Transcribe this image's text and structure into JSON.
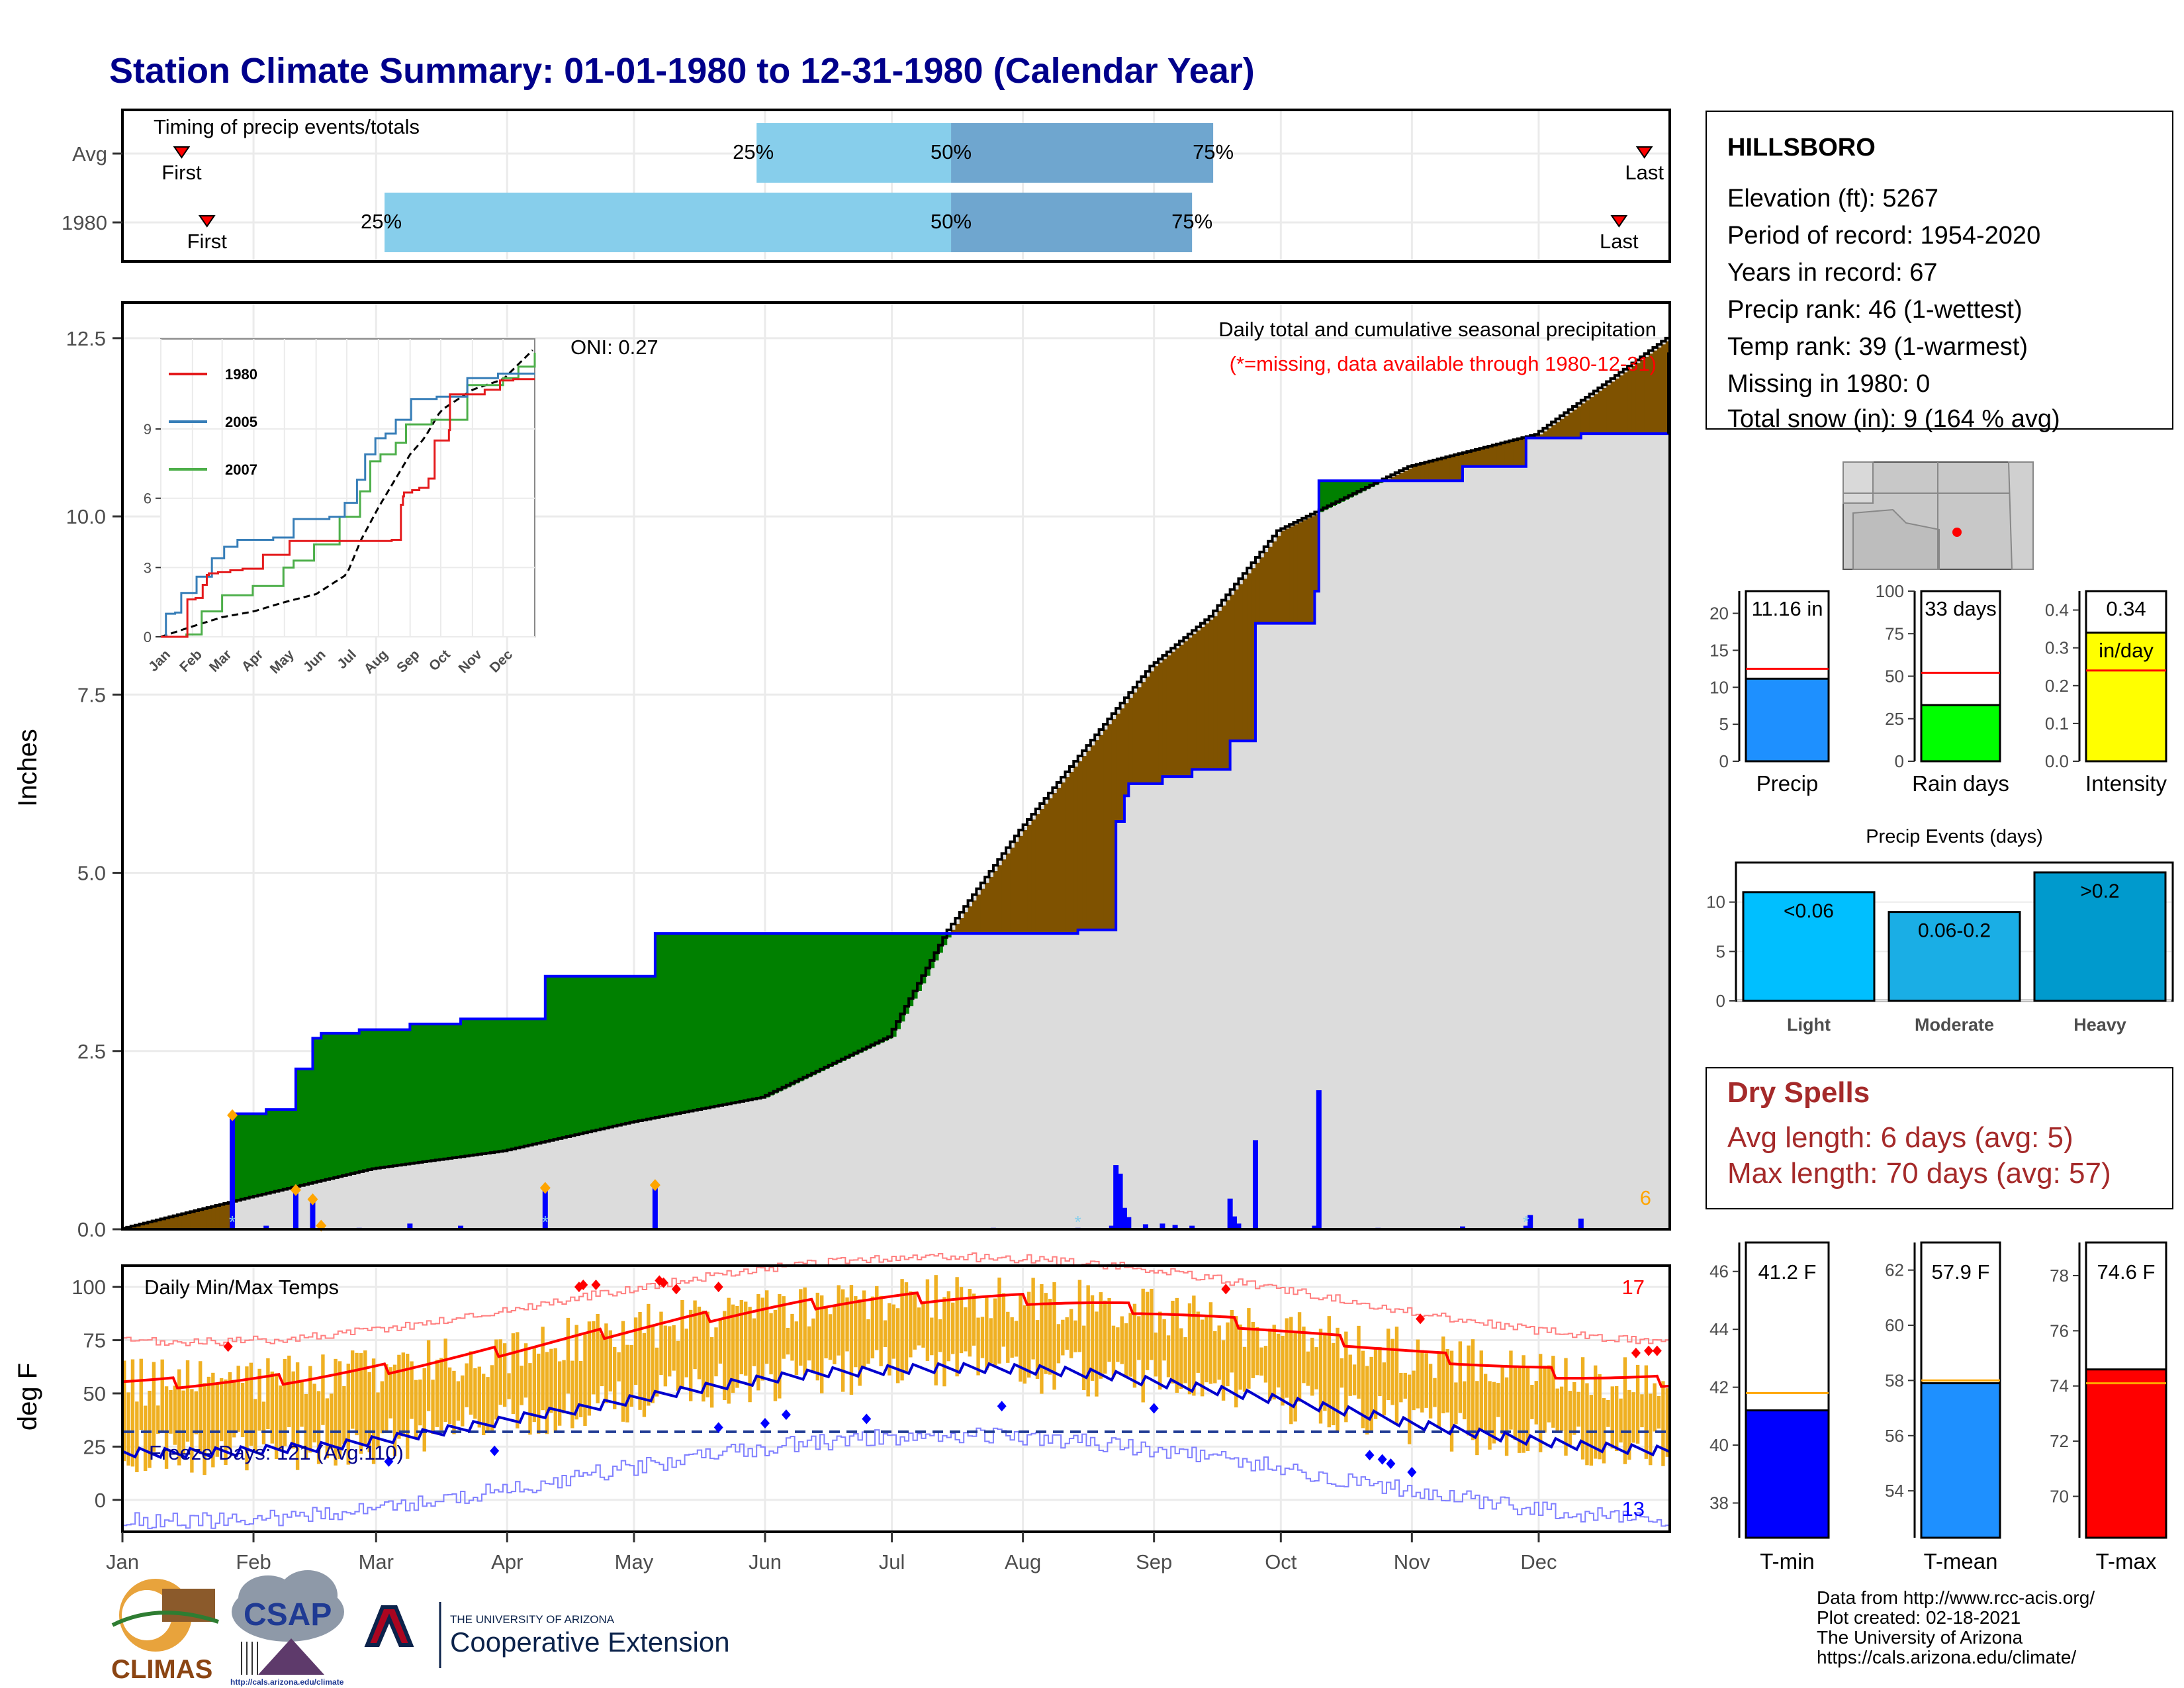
{
  "title": "Station Climate Summary: 01-01-1980 to 12-31-1980 (Calendar Year)",
  "timing": {
    "label": "Timing of precip events/totals",
    "rows": [
      {
        "name": "Avg",
        "first_doy": 14,
        "last_doy": 360,
        "p25_doy": 150,
        "p50_doy": 196,
        "p75_doy": 258
      },
      {
        "name": "1980",
        "first_doy": 20,
        "last_doy": 354,
        "p25_doy": 62,
        "p50_doy": 196,
        "p75_doy": 253
      }
    ],
    "first_label": "First",
    "last_label": "Last",
    "p25_label": "25%",
    "p50_label": "50%",
    "p75_label": "75%"
  },
  "station": {
    "name": "HILLSBORO",
    "lines": [
      "Elevation (ft): 5267",
      "Period of record: 1954-2020",
      "Years in record: 67",
      "Precip rank: 46 (1-wettest)",
      "Temp rank: 39 (1-warmest)",
      "Missing in 1980: 0",
      "Total snow (in): 9 (164 % avg)"
    ]
  },
  "month_labels": [
    "Jan",
    "Feb",
    "Mar",
    "Apr",
    "May",
    "Jun",
    "Jul",
    "Aug",
    "Sep",
    "Oct",
    "Nov",
    "Dec"
  ],
  "precip_panel": {
    "ylabel": "Inches",
    "title": "Daily total and cumulative seasonal precipitation",
    "subtitle": "(*=missing, data available through 1980-12-31)",
    "oni": "ONI: 0.27",
    "count_label": "6",
    "ylim": [
      0,
      13
    ],
    "yticks": [
      "0.0",
      "2.5",
      "5.0",
      "7.5",
      "10.0",
      "12.5"
    ]
  },
  "inset": {
    "legend": [
      "1980",
      "2005",
      "2007"
    ],
    "colors": [
      "#e41a1c",
      "#377eb8",
      "#4daf4a"
    ],
    "yticks": [
      "0",
      "3",
      "6",
      "9"
    ],
    "months": [
      "Jan",
      "Feb",
      "Mar",
      "Apr",
      "May",
      "Jun",
      "Jul",
      "Aug",
      "Sep",
      "Oct",
      "Nov",
      "Dec"
    ]
  },
  "bars_precip": {
    "ylim": [
      0,
      23
    ],
    "yticks": [
      "0",
      "5",
      "10",
      "15",
      "20"
    ],
    "value_label": "11.16 in",
    "value": 11.16,
    "avg": 12.5,
    "xlabel": "Precip",
    "color": "#1e90ff"
  },
  "bars_raindays": {
    "ylim": [
      0,
      100
    ],
    "yticks": [
      "0",
      "25",
      "50",
      "75",
      "100"
    ],
    "value_label": "33 days",
    "value": 33,
    "avg": 52,
    "xlabel": "Rain days",
    "color": "#00ff00"
  },
  "bars_intensity": {
    "ylim": [
      0,
      0.45
    ],
    "yticks": [
      "0.0",
      "0.1",
      "0.2",
      "0.3",
      "0.4"
    ],
    "value_label": "0.34",
    "unit_label": "in/day",
    "value": 0.34,
    "avg": 0.24,
    "xlabel": "Intensity",
    "color": "#ffff00"
  },
  "precip_events": {
    "title": "Precip Events (days)",
    "yticks": [
      "0",
      "5",
      "10"
    ],
    "ylim": [
      0,
      14
    ],
    "bars": [
      {
        "label": "<0.06",
        "value": 11,
        "category": "Light",
        "color": "#00bfff"
      },
      {
        "label": "0.06-0.2",
        "value": 9,
        "category": "Moderate",
        "color": "#1aaee5"
      },
      {
        "label": ">0.2",
        "value": 13,
        "category": "Heavy",
        "color": "#009acd"
      }
    ]
  },
  "dry_spells": {
    "title": "Dry Spells",
    "avg_line": "Avg length: 6 days (avg: 5)",
    "max_line": "Max length: 70 days (avg: 57)"
  },
  "temp_panel": {
    "ylabel": "deg F",
    "title": "Daily Min/Max Temps",
    "ylim": [
      -15,
      110
    ],
    "yticks": [
      "0",
      "25",
      "50",
      "75",
      "100"
    ],
    "freeze_label": "Freeze Days: 121 (Avg:110)",
    "hot_count": "17",
    "cold_count": "13"
  },
  "temp_bars": [
    {
      "label": "41.2 F",
      "xlabel": "T-min",
      "value": 41.2,
      "avg": 41.8,
      "ylim": [
        36.8,
        47
      ],
      "yticks": [
        "38",
        "40",
        "42",
        "44",
        "46"
      ],
      "color": "#0000ff"
    },
    {
      "label": "57.9 F",
      "xlabel": "T-mean",
      "value": 57.9,
      "avg": 58.0,
      "ylim": [
        52.3,
        63
      ],
      "yticks": [
        "54",
        "56",
        "58",
        "60",
        "62"
      ],
      "color": "#1e90ff"
    },
    {
      "label": "74.6 F",
      "xlabel": "T-max",
      "value": 74.6,
      "avg": 74.1,
      "ylim": [
        68.5,
        79.2
      ],
      "yticks": [
        "70",
        "72",
        "74",
        "76",
        "78"
      ],
      "color": "#ff0000"
    }
  ],
  "logos": {
    "climas": "CLIMAS",
    "csap": "CSAP",
    "csap_url": "http://cals.arizona.edu/climate",
    "ua_small": "THE UNIVERSITY OF ARIZONA",
    "ua_big": "Cooperative Extension"
  },
  "footer": [
    "Data from http://www.rcc-acis.org/",
    "Plot created: 02-18-2021",
    "The University of Arizona",
    "https://cals.arizona.edu/climate/"
  ],
  "colors": {
    "title": "#00008b",
    "above": "#008000",
    "below": "#7f5200",
    "dry_spells": "#a52a2a",
    "timing_light": "#87ceeb",
    "timing_dark": "#6fa6cf"
  }
}
